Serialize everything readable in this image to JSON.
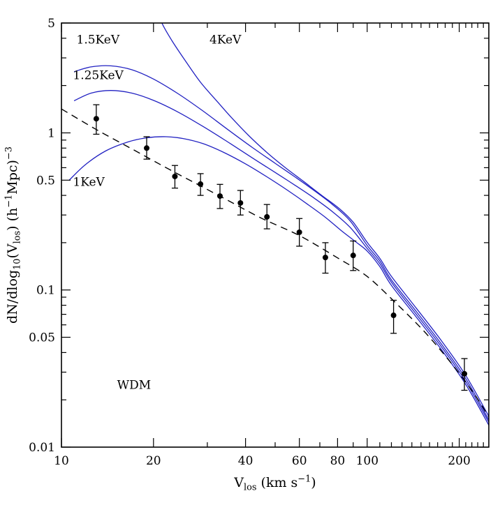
{
  "figure": {
    "background": "#ffffff",
    "frame_color": "#000000",
    "curve_color": "#2121c2",
    "data_color": "#000000",
    "dashed_color": "#000000"
  },
  "chart_data": {
    "type": "line",
    "title": "",
    "xscale": "log",
    "yscale": "log",
    "xlim": [
      10,
      250
    ],
    "ylim": [
      0.01,
      5
    ],
    "grid": false,
    "legend": "none",
    "xlabel": "V_los (km s−1)",
    "ylabel": "dN/dlog10(V_los)  (h−1Mpc)−3",
    "xlabel_parts": [
      {
        "t": "V"
      },
      {
        "t": "los",
        "sub": true
      },
      {
        "t": " (km s"
      },
      {
        "t": "−1",
        "sup": true
      },
      {
        "t": ")"
      }
    ],
    "ylabel_parts": [
      {
        "t": "dN/dlog"
      },
      {
        "t": "10",
        "sub": true
      },
      {
        "t": "(V"
      },
      {
        "t": "los",
        "sub": true
      },
      {
        "t": ")  (h"
      },
      {
        "t": "−1",
        "sup": true
      },
      {
        "t": "Mpc)"
      },
      {
        "t": "−3",
        "sup": true
      }
    ],
    "x_ticks": {
      "major": [
        {
          "v": 10,
          "label": "10"
        },
        {
          "v": 20,
          "label": "20"
        },
        {
          "v": 40,
          "label": "40"
        },
        {
          "v": 60,
          "label": "60"
        },
        {
          "v": 80,
          "label": "80"
        },
        {
          "v": 100,
          "label": "100"
        },
        {
          "v": 200,
          "label": "200"
        }
      ],
      "minor": [
        30,
        50,
        70,
        90,
        110,
        120,
        130,
        140,
        150,
        160,
        170,
        180,
        190,
        210,
        220,
        230,
        240
      ]
    },
    "y_ticks": {
      "major": [
        {
          "v": 5,
          "label": "5"
        },
        {
          "v": 1,
          "label": "1"
        },
        {
          "v": 0.5,
          "label": "0.5"
        },
        {
          "v": 0.1,
          "label": "0.1"
        },
        {
          "v": 0.05,
          "label": "0.05"
        },
        {
          "v": 0.01,
          "label": "0.01"
        }
      ],
      "minor": [
        4,
        3,
        2,
        0.9,
        0.8,
        0.7,
        0.6,
        0.4,
        0.3,
        0.2,
        0.09,
        0.08,
        0.07,
        0.06,
        0.04,
        0.03,
        0.02
      ]
    },
    "series": [
      {
        "name": "4KeV",
        "style": "solid",
        "points": [
          [
            20,
            6.8
          ],
          [
            21.3,
            5.0
          ],
          [
            23,
            3.85
          ],
          [
            25.5,
            2.85
          ],
          [
            28.5,
            2.1
          ],
          [
            32,
            1.62
          ],
          [
            36,
            1.25
          ],
          [
            41,
            0.96
          ],
          [
            47,
            0.75
          ],
          [
            54,
            0.6
          ],
          [
            62,
            0.49
          ],
          [
            71,
            0.4
          ],
          [
            81,
            0.33
          ],
          [
            90,
            0.27
          ],
          [
            100,
            0.201
          ],
          [
            110,
            0.159
          ],
          [
            120,
            0.122
          ],
          [
            145,
            0.0763
          ],
          [
            175,
            0.0475
          ],
          [
            210,
            0.0286
          ],
          [
            250,
            0.0157
          ]
        ]
      },
      {
        "name": "1.5KeV",
        "style": "solid",
        "points": [
          [
            11,
            2.45
          ],
          [
            12.5,
            2.63
          ],
          [
            14.5,
            2.67
          ],
          [
            17,
            2.52
          ],
          [
            20,
            2.2
          ],
          [
            24,
            1.78
          ],
          [
            29,
            1.38
          ],
          [
            35,
            1.05
          ],
          [
            42,
            0.81
          ],
          [
            50,
            0.64
          ],
          [
            58,
            0.525
          ],
          [
            67,
            0.43
          ],
          [
            77,
            0.35
          ],
          [
            88,
            0.275
          ],
          [
            100,
            0.192
          ],
          [
            110,
            0.153
          ],
          [
            120,
            0.116
          ],
          [
            145,
            0.0727
          ],
          [
            175,
            0.0452
          ],
          [
            210,
            0.0273
          ],
          [
            250,
            0.0149
          ]
        ]
      },
      {
        "name": "1.25KeV",
        "style": "solid",
        "points": [
          [
            11,
            1.6
          ],
          [
            12.5,
            1.79
          ],
          [
            14.5,
            1.86
          ],
          [
            17,
            1.79
          ],
          [
            20,
            1.61
          ],
          [
            24,
            1.36
          ],
          [
            29,
            1.1
          ],
          [
            35,
            0.875
          ],
          [
            42,
            0.695
          ],
          [
            50,
            0.56
          ],
          [
            58,
            0.465
          ],
          [
            67,
            0.385
          ],
          [
            77,
            0.315
          ],
          [
            88,
            0.25
          ],
          [
            100,
            0.184
          ],
          [
            110,
            0.147
          ],
          [
            120,
            0.112
          ],
          [
            145,
            0.0698
          ],
          [
            175,
            0.0435
          ],
          [
            210,
            0.0262
          ],
          [
            250,
            0.0144
          ]
        ]
      },
      {
        "name": "1KeV",
        "style": "solid",
        "points": [
          [
            10.6,
            0.5
          ],
          [
            12,
            0.63
          ],
          [
            14,
            0.77
          ],
          [
            16.5,
            0.875
          ],
          [
            19,
            0.93
          ],
          [
            22,
            0.945
          ],
          [
            25,
            0.92
          ],
          [
            29,
            0.855
          ],
          [
            34,
            0.75
          ],
          [
            40,
            0.635
          ],
          [
            47,
            0.525
          ],
          [
            55,
            0.43
          ],
          [
            64,
            0.35
          ],
          [
            73,
            0.29
          ],
          [
            82,
            0.24
          ],
          [
            91,
            0.205
          ],
          [
            100,
            0.177
          ],
          [
            110,
            0.141
          ],
          [
            120,
            0.107
          ],
          [
            145,
            0.067
          ],
          [
            175,
            0.0417
          ],
          [
            210,
            0.0251
          ],
          [
            250,
            0.0138
          ]
        ]
      },
      {
        "name": "dashed-reference",
        "style": "dashed",
        "points": [
          [
            10,
            1.42
          ],
          [
            13,
            1.05
          ],
          [
            17,
            0.79
          ],
          [
            22,
            0.6
          ],
          [
            28,
            0.468
          ],
          [
            35,
            0.372
          ],
          [
            45,
            0.287
          ],
          [
            60,
            0.222
          ],
          [
            80,
            0.16
          ],
          [
            100,
            0.122
          ],
          [
            125,
            0.0815
          ],
          [
            155,
            0.0535
          ],
          [
            190,
            0.0335
          ],
          [
            225,
            0.0215
          ],
          [
            252,
            0.0152
          ]
        ]
      }
    ],
    "data_points": [
      {
        "v": 13,
        "n": 1.23,
        "lo": 0.98,
        "hi": 1.51
      },
      {
        "v": 19,
        "n": 0.8,
        "lo": 0.68,
        "hi": 0.945
      },
      {
        "v": 23.5,
        "n": 0.528,
        "lo": 0.445,
        "hi": 0.62
      },
      {
        "v": 28.5,
        "n": 0.472,
        "lo": 0.4,
        "hi": 0.55
      },
      {
        "v": 33,
        "n": 0.396,
        "lo": 0.33,
        "hi": 0.47
      },
      {
        "v": 38.5,
        "n": 0.358,
        "lo": 0.3,
        "hi": 0.43
      },
      {
        "v": 47,
        "n": 0.292,
        "lo": 0.245,
        "hi": 0.35
      },
      {
        "v": 60,
        "n": 0.233,
        "lo": 0.19,
        "hi": 0.285
      },
      {
        "v": 73,
        "n": 0.161,
        "lo": 0.128,
        "hi": 0.2
      },
      {
        "v": 90,
        "n": 0.166,
        "lo": 0.133,
        "hi": 0.205
      },
      {
        "v": 122,
        "n": 0.069,
        "lo": 0.053,
        "hi": 0.086
      },
      {
        "v": 208,
        "n": 0.0293,
        "lo": 0.023,
        "hi": 0.0366
      }
    ],
    "annotations": [
      {
        "text": "1.5KeV",
        "v": 11.2,
        "n": 3.7
      },
      {
        "text": "4KeV",
        "v": 30.5,
        "n": 3.7
      },
      {
        "text": "1.25KeV",
        "v": 10.9,
        "n": 2.2
      },
      {
        "text": "1KeV",
        "v": 10.9,
        "n": 0.46
      },
      {
        "text": "WDM",
        "v": 15.2,
        "n": 0.0235
      }
    ]
  }
}
